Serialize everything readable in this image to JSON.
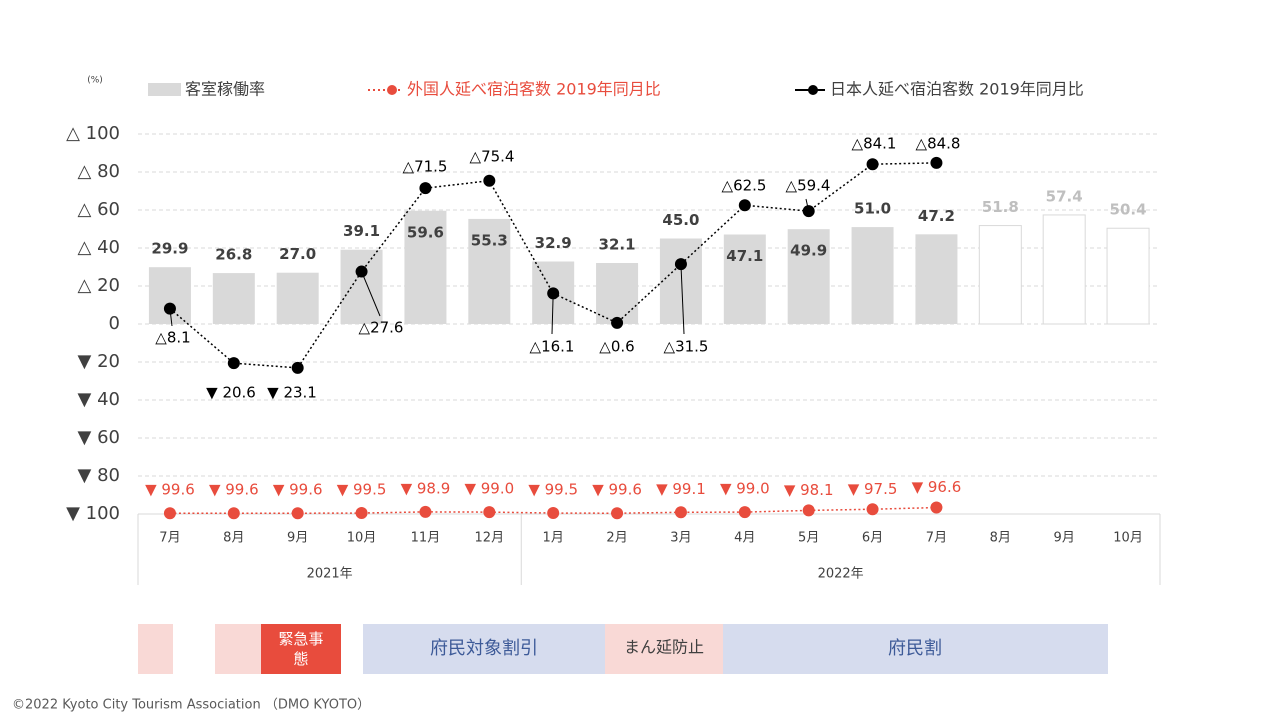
{
  "chart_data": {
    "type": "bar-line",
    "y_unit": "(%)",
    "categories": [
      "7月",
      "8月",
      "9月",
      "10月",
      "11月",
      "12月",
      "1月",
      "2月",
      "3月",
      "4月",
      "5月",
      "6月",
      "7月",
      "8月",
      "9月",
      "10月"
    ],
    "groups": [
      {
        "label": "2021年",
        "span": 6
      },
      {
        "label": "2022年",
        "span": 10
      }
    ],
    "ylim": [
      -100,
      100
    ],
    "yticks": [
      {
        "value": 100,
        "label": "△ 100"
      },
      {
        "value": 80,
        "label": "△ 80"
      },
      {
        "value": 60,
        "label": "△ 60"
      },
      {
        "value": 40,
        "label": "△ 40"
      },
      {
        "value": 20,
        "label": "△ 20"
      },
      {
        "value": 0,
        "label": "0"
      },
      {
        "value": -20,
        "label": "▼ 20"
      },
      {
        "value": -40,
        "label": "▼ 40"
      },
      {
        "value": -60,
        "label": "▼ 60"
      },
      {
        "value": -80,
        "label": "▼ 80"
      },
      {
        "value": -100,
        "label": "▼ 100"
      }
    ],
    "grid": true,
    "series": [
      {
        "name": "客室稼働率",
        "kind": "bar",
        "color": "#d9d9d9",
        "values": [
          29.9,
          26.8,
          27.0,
          39.1,
          59.6,
          55.3,
          32.9,
          32.1,
          45.0,
          47.1,
          49.9,
          51.0,
          47.2,
          51.8,
          57.4,
          50.4
        ],
        "value_labels": [
          "29.9",
          "26.8",
          "27.0",
          "39.1",
          "59.6",
          "55.3",
          "32.9",
          "32.1",
          "45.0",
          "47.1",
          "49.9",
          "51.0",
          "47.2",
          "51.8",
          "57.4",
          "50.4"
        ],
        "bar_colors": [
          "#d9d9d9",
          "#d9d9d9",
          "#d9d9d9",
          "#d9d9d9",
          "#d9d9d9",
          "#d9d9d9",
          "#d9d9d9",
          "#d9d9d9",
          "#d9d9d9",
          "#d9d9d9",
          "#d9d9d9",
          "#d9d9d9",
          "#d9d9d9",
          "#ffffff",
          "#ffffff",
          "#ffffff"
        ]
      },
      {
        "name": "外国人延べ宿泊客数 2019年同月比",
        "kind": "line",
        "color": "#e84c3d",
        "dash": "dotted",
        "values": [
          -99.6,
          -99.6,
          -99.6,
          -99.5,
          -98.9,
          -99.0,
          -99.5,
          -99.6,
          -99.1,
          -99.0,
          -98.1,
          -97.5,
          -96.6,
          null,
          null,
          null
        ],
        "value_labels": [
          "▼ 99.6",
          "▼ 99.6",
          "▼ 99.6",
          "▼ 99.5",
          "▼ 98.9",
          "▼ 99.0",
          "▼ 99.5",
          "▼ 99.6",
          "▼ 99.1",
          "▼ 99.0",
          "▼ 98.1",
          "▼ 97.5",
          "▼ 96.6",
          null,
          null,
          null
        ]
      },
      {
        "name": "日本人延べ宿泊客数 2019年同月比",
        "kind": "line",
        "color": "#000000",
        "dash": "dotted",
        "values": [
          8.1,
          -20.6,
          -23.1,
          27.6,
          71.5,
          75.4,
          16.1,
          0.6,
          31.5,
          62.5,
          59.4,
          84.1,
          84.8,
          null,
          null,
          null
        ],
        "value_labels": [
          "△8.1",
          "▼ 20.6",
          "▼ 23.1",
          "△27.6",
          "△71.5",
          "△75.4",
          "△16.1",
          "△0.6",
          "△31.5",
          "△62.5",
          "△59.4",
          "△84.1",
          "△84.8",
          null,
          null,
          null
        ]
      }
    ]
  },
  "timeline": [
    {
      "label": "緊急事態"
    },
    {
      "label": "府民対象割引"
    },
    {
      "label": "まん延防止"
    },
    {
      "label": "府民割"
    }
  ],
  "footer": "©2022 Kyoto City Tourism Association （DMO KYOTO）"
}
